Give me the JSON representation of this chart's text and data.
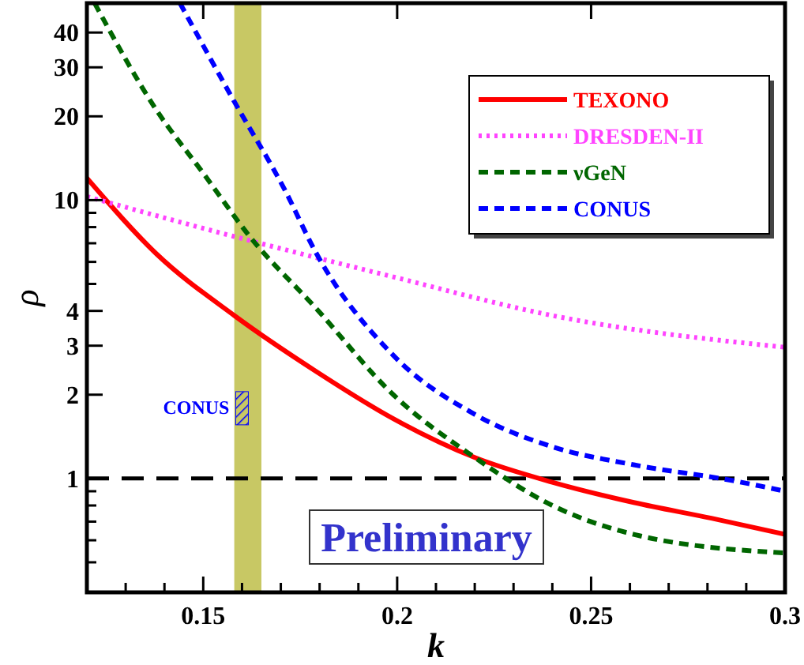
{
  "chart_data": {
    "type": "line",
    "xlabel": "k",
    "ylabel": "ρ",
    "log": "y",
    "xlim": [
      0.12,
      0.3
    ],
    "ylim": [
      0.39,
      51
    ],
    "xticks": [
      {
        "value": 0.13,
        "label": null
      },
      {
        "value": 0.14,
        "label": null
      },
      0.15,
      {
        "value": 0.16,
        "label": null
      },
      {
        "value": 0.17,
        "label": null
      },
      {
        "value": 0.18,
        "label": null
      },
      {
        "value": 0.19,
        "label": null
      },
      0.2,
      {
        "value": 0.21,
        "label": null
      },
      {
        "value": 0.22,
        "label": null
      },
      {
        "value": 0.23,
        "label": null
      },
      {
        "value": 0.24,
        "label": null
      },
      0.25,
      {
        "value": 0.26,
        "label": null
      },
      {
        "value": 0.27,
        "label": null
      },
      {
        "value": 0.28,
        "label": null
      },
      {
        "value": 0.29,
        "label": null
      },
      0.3
    ],
    "yticks": [
      {
        "value": 0.5,
        "label": null
      },
      {
        "value": 0.6,
        "label": null
      },
      {
        "value": 0.7,
        "label": null
      },
      {
        "value": 0.8,
        "label": null
      },
      {
        "value": 0.9,
        "label": null
      },
      1,
      2,
      3,
      4,
      {
        "value": 5,
        "label": null
      },
      {
        "value": 6,
        "label": null
      },
      {
        "value": 7,
        "label": null
      },
      {
        "value": 8,
        "label": null
      },
      {
        "value": 9,
        "label": null
      },
      10,
      20,
      30,
      40
    ],
    "legend": "top right",
    "grid": false,
    "series": [
      {
        "name": "TEXONO",
        "color": "#ff0000",
        "line_style": "solid",
        "x": [
          0.12,
          0.138,
          0.158,
          0.179,
          0.199,
          0.22,
          0.24,
          0.261,
          0.281,
          0.3
        ],
        "values": [
          12,
          6.4,
          3.85,
          2.43,
          1.64,
          1.19,
          0.97,
          0.82,
          0.72,
          0.63
        ]
      },
      {
        "name": "DRESDEN-II",
        "color": "#ff44ff",
        "line_style": "dotted",
        "x": [
          0.12,
          0.158,
          0.199,
          0.24,
          0.3
        ],
        "values": [
          10.3,
          7.4,
          5.3,
          3.85,
          2.96
        ]
      },
      {
        "name": "νGeN",
        "color": "#006600",
        "line_style": "dashed",
        "x": [
          0.122,
          0.138,
          0.15,
          0.162,
          0.179,
          0.199,
          0.22,
          0.24,
          0.261,
          0.3
        ],
        "values": [
          51,
          21,
          12.5,
          7.4,
          4.1,
          2.0,
          1.19,
          0.8,
          0.63,
          0.54
        ]
      },
      {
        "name": "CONUS",
        "color": "#0000ff",
        "line_style": "dashed",
        "x": [
          0.144,
          0.158,
          0.171,
          0.179,
          0.199,
          0.22,
          0.24,
          0.261,
          0.287,
          0.3
        ],
        "values": [
          51,
          22.6,
          10.9,
          6.5,
          2.77,
          1.7,
          1.3,
          1.12,
          0.98,
          0.9
        ]
      }
    ],
    "ref_lines": [
      {
        "axis": "y",
        "value": 1,
        "color": "#000000",
        "line_style": "dashed"
      }
    ],
    "bands": [
      {
        "axis": "x",
        "from": 0.158,
        "to": 0.165,
        "color": "#c8c864"
      }
    ],
    "annotations": [
      {
        "text": "CONUS",
        "x": 0.16,
        "y": 1.8
      },
      "Preliminary"
    ]
  }
}
